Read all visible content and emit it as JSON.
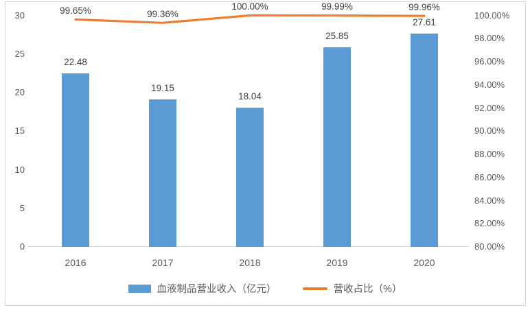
{
  "chart_data": {
    "type": "bar",
    "combo": "bar+line",
    "title": "",
    "categories": [
      "2016",
      "2017",
      "2018",
      "2019",
      "2020"
    ],
    "series": [
      {
        "name": "血液制品营业收入（亿元）",
        "type": "bar",
        "axis": "left",
        "values": [
          22.48,
          19.15,
          18.04,
          25.85,
          27.61
        ],
        "labels": [
          "22.48",
          "19.15",
          "18.04",
          "25.85",
          "27.61"
        ],
        "color": "#5B9BD5"
      },
      {
        "name": "营收占比（%）",
        "type": "line",
        "axis": "right",
        "values": [
          99.65,
          99.36,
          100.0,
          99.99,
          99.96
        ],
        "labels": [
          "99.65%",
          "99.36%",
          "100.00%",
          "99.99%",
          "99.96%"
        ],
        "color": "#ED7D31"
      }
    ],
    "left_axis": {
      "min": 0,
      "max": 30,
      "step": 5,
      "ticks": [
        "0",
        "5",
        "10",
        "15",
        "20",
        "25",
        "30"
      ]
    },
    "right_axis": {
      "min": 80,
      "max": 100,
      "step": 2,
      "ticks": [
        "80.00%",
        "82.00%",
        "84.00%",
        "86.00%",
        "88.00%",
        "90.00%",
        "92.00%",
        "94.00%",
        "96.00%",
        "98.00%",
        "100.00%"
      ]
    },
    "grid": false,
    "legend_position": "bottom"
  },
  "legend": {
    "bar_label": "血液制品营业收入（亿元）",
    "line_label": "营收占比（%）"
  },
  "colors": {
    "bar": "#5B9BD5",
    "line": "#ED7D31",
    "axis_text": "#595959",
    "label_text": "#3F3F3F",
    "axis_line": "#D6D6D6",
    "border": "#D9D9D9"
  }
}
